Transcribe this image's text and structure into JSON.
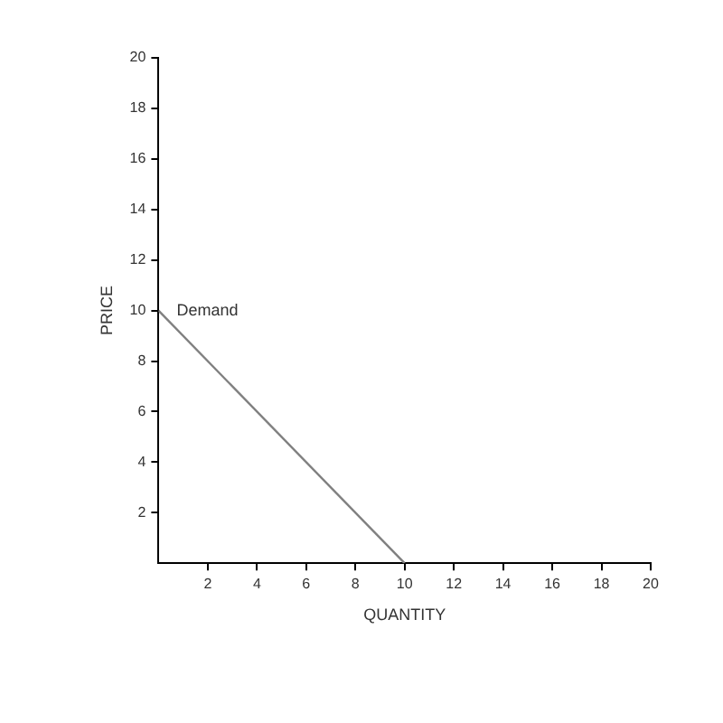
{
  "chart_data": {
    "type": "line",
    "xlabel": "QUANTITY",
    "ylabel": "PRICE",
    "x": [
      0,
      10
    ],
    "series": [
      {
        "name": "Demand",
        "color": "#808080",
        "values": [
          10,
          0
        ]
      }
    ],
    "xlim": [
      0,
      20
    ],
    "xticks": [
      2,
      4,
      6,
      8,
      10,
      12,
      14,
      16,
      18,
      20
    ],
    "ylim": [
      0,
      20
    ],
    "yticks": [
      2,
      4,
      6,
      8,
      10,
      12,
      14,
      16,
      18,
      20
    ],
    "grid": false,
    "legend": false,
    "marker": "none",
    "line_style": "solid"
  }
}
